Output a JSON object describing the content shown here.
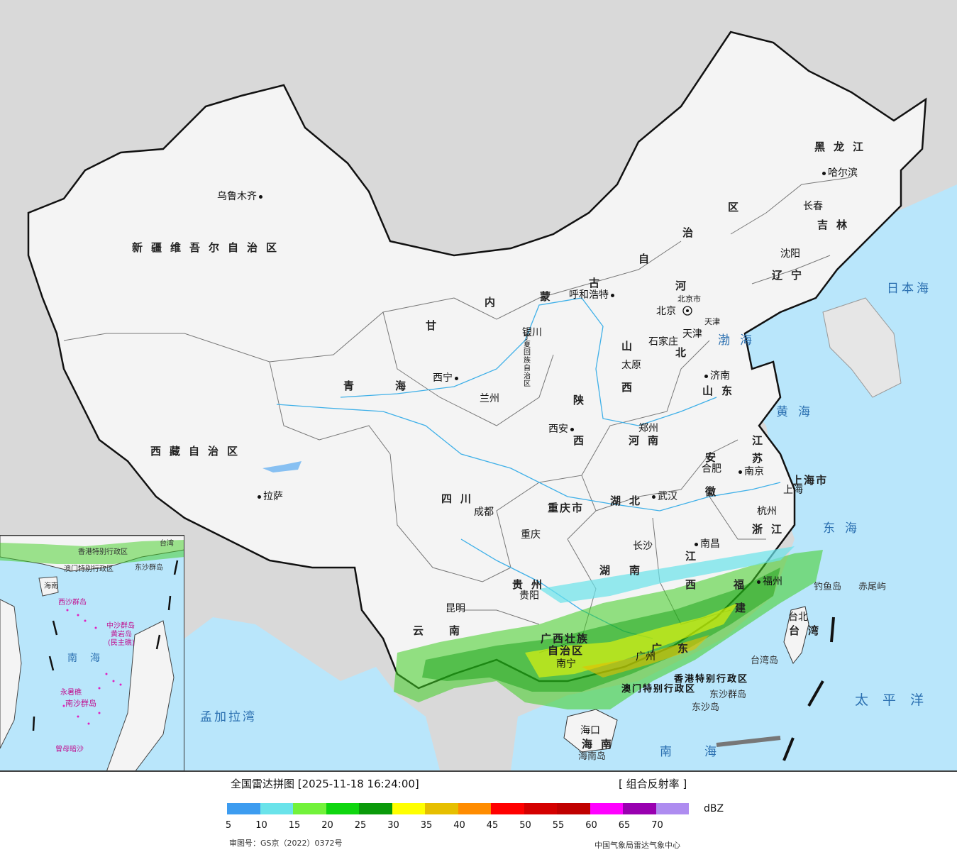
{
  "title": "全国雷达拼图 [2025-11-18 16:24:00]",
  "product": "[ 组合反射率 ]",
  "unit": "dBZ",
  "approval": "审图号：GS京（2022）0372号",
  "producer": "中国气象局雷达气象中心",
  "legend": {
    "ticks": [
      "5",
      "10",
      "15",
      "20",
      "25",
      "30",
      "35",
      "40",
      "45",
      "50",
      "55",
      "60",
      "65",
      "70"
    ],
    "colors": [
      "#3d9cf0",
      "#6ae3ea",
      "#72f23a",
      "#0fd60f",
      "#0a9a0a",
      "#ffff00",
      "#e6bf00",
      "#ff8c00",
      "#ff0000",
      "#d40000",
      "#c00000",
      "#ff00ff",
      "#9900b0",
      "#ae8cf0"
    ]
  },
  "provinces": {
    "xinjiang": "新疆维吾尔自治区",
    "xizang": "西藏自治区",
    "qinghai_a": "青",
    "qinghai_b": "海",
    "gansu": "甘",
    "neimenggu_nei": "内",
    "neimenggu_meng": "蒙",
    "neimenggu_gu": "古",
    "neimenggu_zi": "自",
    "neimenggu_zhi": "治",
    "neimenggu_qu": "区",
    "heilongjiang": "黑龙江",
    "jilin": "吉林",
    "liaoning": "辽宁",
    "hebei_he": "河",
    "hebei_bei": "北",
    "shanxi_shan": "山",
    "shanxi_xi": "西",
    "shandong": "山东",
    "henan": "河南",
    "shaanxi_shan": "陕",
    "shaanxi_xi": "西",
    "ningxia": "宁夏回族自治区",
    "sichuan": "四川",
    "chongqing": "重庆市",
    "hubei": "湖北",
    "anhui_an": "安",
    "anhui_hui": "徽",
    "jiangsu_jiang": "江",
    "jiangsu_su": "苏",
    "shanghai": "上海市",
    "zhejiang": "浙江",
    "jiangxi_jiang": "江",
    "jiangxi_xi": "西",
    "hunan_hu": "湖",
    "hunan_nan": "南",
    "guizhou": "贵州",
    "yunnan": "云南",
    "guangxi_a": "广西壮族",
    "guangxi_b": "自治区",
    "guangdong_guang": "广",
    "guangdong_dong": "东",
    "fujian_fu": "福",
    "fujian_jian": "建",
    "taiwan": "台湾",
    "hainan": "海南",
    "hk": "香港特别行政区",
    "macao": "澳门特别行政区",
    "beijing": "北京市",
    "tianjin": "天津"
  },
  "cities": {
    "urumqi": "乌鲁木齐",
    "lhasa": "拉萨",
    "xining": "西宁",
    "lanzhou": "兰州",
    "yinchuan": "银川",
    "hohhot": "呼和浩特",
    "beijing": "北京",
    "tianjin": "天津",
    "shijiazhuang": "石家庄",
    "taiyuan": "太原",
    "jinan": "济南",
    "zhengzhou": "郑州",
    "xian": "西安",
    "chengdu": "成都",
    "chongqing": "重庆",
    "wuhan": "武汉",
    "hefei": "合肥",
    "nanjing": "南京",
    "shanghai": "上海",
    "hangzhou": "杭州",
    "nanchang": "南昌",
    "changsha": "长沙",
    "guiyang": "贵阳",
    "kunming": "昆明",
    "nanning": "南宁",
    "guangzhou": "广州",
    "fuzhou": "福州",
    "taipei": "台北",
    "haikou": "海口",
    "harbin": "哈尔滨",
    "changchun": "长春",
    "shenyang": "沈阳"
  },
  "seas": {
    "bohai": "渤海",
    "huanghai": "黄海",
    "donghai": "东海",
    "nanhai": "南海",
    "japan": "日本海",
    "pacific": "太平洋",
    "bengal": "孟加拉湾"
  },
  "islands": {
    "diaoyu": "钓鱼岛",
    "chiwei": "赤尾屿",
    "dongsha_qd": "东沙群岛",
    "dongsha": "东沙岛",
    "taiwan_dao": "台湾岛",
    "hainan_dao": "海南岛"
  },
  "inset": {
    "nanhai": "南海",
    "hainan": "海南",
    "xisha": "西沙群岛",
    "zhongsha": "中沙群岛",
    "huangyan": "黄岩岛",
    "minzhujiao": "(民主礁)",
    "nansha": "南沙群岛",
    "yongshu": "永暑礁",
    "zengmu": "曾母暗沙",
    "taiwan": "台湾",
    "hk": "香港特别行政区",
    "macao": "澳门特别行政区",
    "dongsha": "东沙群岛"
  }
}
